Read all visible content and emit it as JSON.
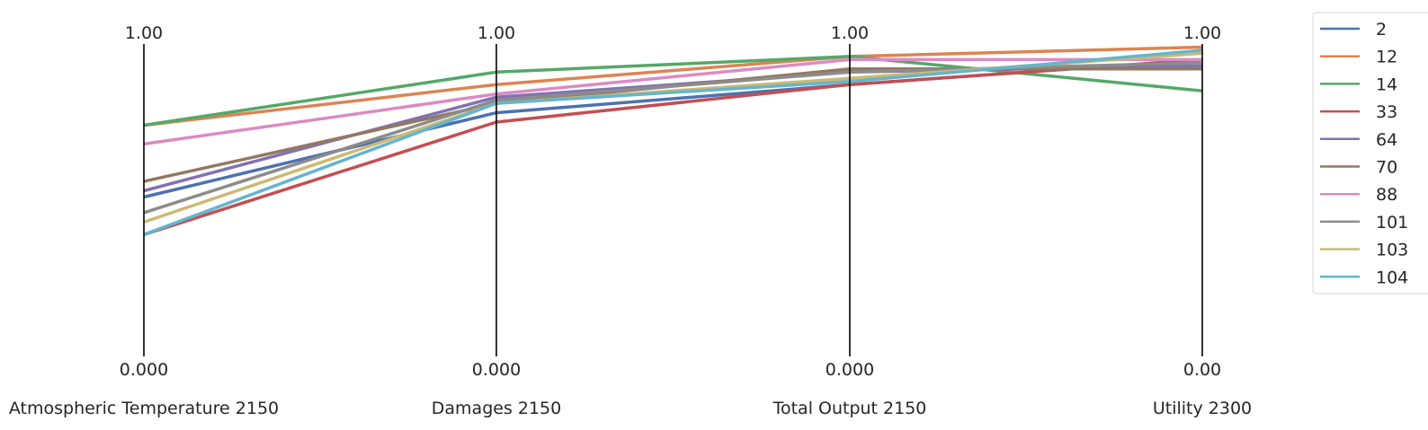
{
  "chart_data": {
    "type": "line",
    "subtype": "parallel-coordinates",
    "title": "",
    "grid": false,
    "legend_position": "top-right",
    "axes": [
      {
        "label": "Atmospheric Temperature 2150",
        "top_label": "1.00",
        "bottom_label": "0.000",
        "range": [
          0,
          1
        ]
      },
      {
        "label": "Damages 2150",
        "top_label": "1.00",
        "bottom_label": "0.000",
        "range": [
          0,
          1
        ]
      },
      {
        "label": "Total Output 2150",
        "top_label": "1.00",
        "bottom_label": "0.000",
        "range": [
          0,
          1
        ]
      },
      {
        "label": "Utility 2300",
        "top_label": "1.00",
        "bottom_label": "0.00",
        "range": [
          0,
          1
        ]
      }
    ],
    "series": [
      {
        "name": "2",
        "color": "#4c72b0",
        "values": [
          0.51,
          0.78,
          0.87,
          0.95
        ]
      },
      {
        "name": "12",
        "color": "#dd8452",
        "values": [
          0.74,
          0.87,
          0.96,
          0.99
        ]
      },
      {
        "name": "14",
        "color": "#55a868",
        "values": [
          0.74,
          0.91,
          0.96,
          0.85
        ]
      },
      {
        "name": "33",
        "color": "#c44e52",
        "values": [
          0.39,
          0.75,
          0.87,
          0.95
        ]
      },
      {
        "name": "64",
        "color": "#8172b3",
        "values": [
          0.53,
          0.83,
          0.91,
          0.93
        ]
      },
      {
        "name": "70",
        "color": "#937860",
        "values": [
          0.56,
          0.81,
          0.92,
          0.92
        ]
      },
      {
        "name": "88",
        "color": "#da8bc3",
        "values": [
          0.68,
          0.84,
          0.95,
          0.95
        ]
      },
      {
        "name": "101",
        "color": "#8c8c8c",
        "values": [
          0.46,
          0.82,
          0.91,
          0.94
        ]
      },
      {
        "name": "103",
        "color": "#ccb974",
        "values": [
          0.43,
          0.81,
          0.89,
          0.97
        ]
      },
      {
        "name": "104",
        "color": "#64b5cd",
        "values": [
          0.39,
          0.81,
          0.88,
          0.98
        ]
      }
    ]
  }
}
